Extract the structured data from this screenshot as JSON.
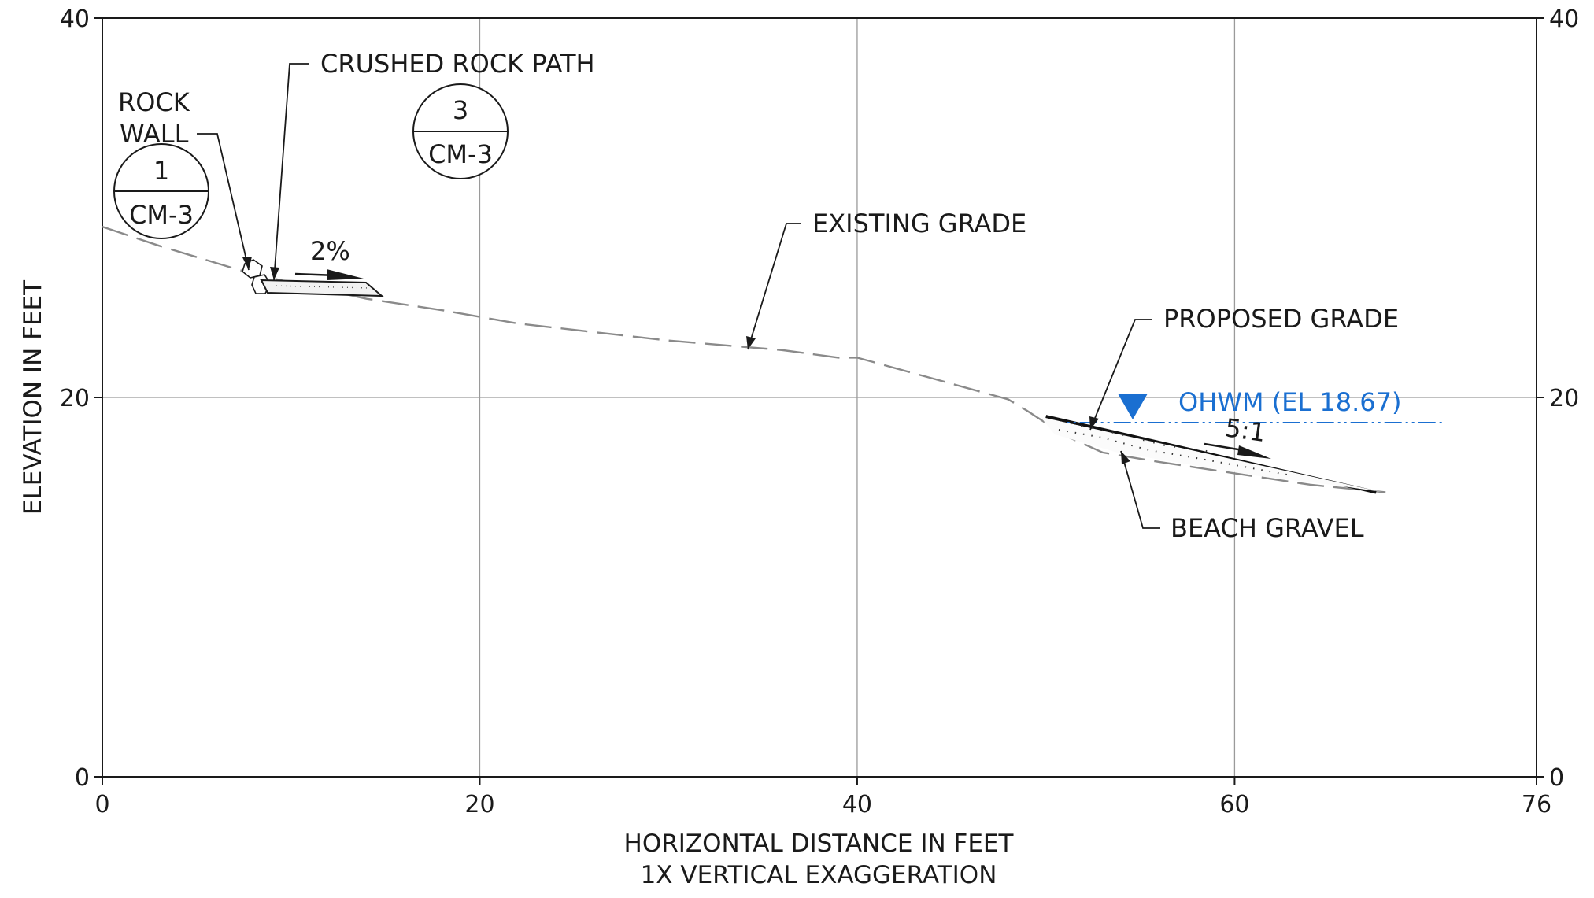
{
  "chart_data": {
    "type": "line",
    "xlabel": "HORIZONTAL DISTANCE IN FEET",
    "subtitle": "1X VERTICAL EXAGGERATION",
    "ylabel": "ELEVATION IN FEET",
    "xlim": [
      0,
      76
    ],
    "ylim": [
      0,
      40
    ],
    "x_ticks": [
      "0",
      "20",
      "40",
      "60",
      "76"
    ],
    "y_ticks_left": [
      "40",
      "20",
      "0"
    ],
    "y_ticks_right": [
      "40",
      "20",
      "0"
    ],
    "grid_x": [
      20,
      40,
      60
    ],
    "grid_y": [
      20
    ],
    "series": [
      {
        "name": "EXISTING GRADE",
        "style": "dashed",
        "x": [
          0,
          3,
          8,
          14,
          18,
          22,
          30,
          36,
          39,
          40,
          44,
          48,
          49,
          51,
          53,
          56,
          60,
          64,
          68
        ],
        "y": [
          29.0,
          28.0,
          26.5,
          25.2,
          24.6,
          23.9,
          23.0,
          22.5,
          22.1,
          22.1,
          21.0,
          19.9,
          19.3,
          18.0,
          17.1,
          16.6,
          16.0,
          15.4,
          15.0
        ]
      },
      {
        "name": "PROPOSED GRADE",
        "style": "solid",
        "x": [
          50,
          67.5
        ],
        "y": [
          19.0,
          15.0
        ]
      }
    ],
    "ohwm": {
      "x": [
        50,
        71
      ],
      "y": 18.67
    },
    "annotations": {
      "rock_wall": [
        "ROCK",
        "WALL"
      ],
      "crushed_rock_path": "CRUSHED ROCK PATH",
      "existing_grade": "EXISTING GRADE",
      "proposed_grade": "PROPOSED GRADE",
      "beach_gravel": "BEACH GRAVEL",
      "ohwm_label": "OHWM (EL 18.67)",
      "slope_path": "2%",
      "slope_beach": "5:1"
    },
    "section_bubbles": [
      {
        "number": "1",
        "sheet": "CM-3"
      },
      {
        "number": "3",
        "sheet": "CM-3"
      }
    ],
    "colors": {
      "ohwm": "#1a6fd1",
      "existing": "#8a8a8a",
      "proposed": "#111111"
    }
  }
}
